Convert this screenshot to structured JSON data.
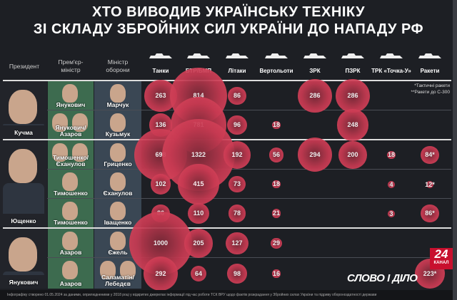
{
  "title": {
    "line1": "ХТО ВИВОДИВ УКРАЇНСЬКУ ТЕХНІКУ",
    "line2": "ЗІ СКЛАДУ ЗБРОЙНИХ СИЛ УКРАЇНИ ДО НАПАДУ РФ"
  },
  "headers": {
    "president": "Президент",
    "pm": "Прем'єр-\nміністр",
    "minister": "Міністр\nоборони"
  },
  "columns": [
    {
      "label": "Танки",
      "icon": "tank-icon"
    },
    {
      "label": "БТР/БМП",
      "icon": "apc-icon"
    },
    {
      "label": "Літаки",
      "icon": "jet-icon"
    },
    {
      "label": "Вертольоти",
      "icon": "helicopter-icon"
    },
    {
      "label": "ЗРК",
      "icon": "sam-icon"
    },
    {
      "label": "ПЗРК",
      "icon": "manpads-icon"
    },
    {
      "label": "ТРК «Точка-У»",
      "icon": "tochka-icon"
    },
    {
      "label": "Ракети",
      "icon": "missile-icon"
    }
  ],
  "notes": [
    "*Тактичні ракети",
    "**Ракети до С-300"
  ],
  "presidents": [
    {
      "name": "Кучма"
    },
    {
      "name": "Ющенко"
    },
    {
      "name": "Янукович"
    }
  ],
  "rows": [
    {
      "president": 0,
      "pm": "Янукович",
      "pm_faces": 1,
      "minister": "Марчук",
      "min_faces": 1,
      "values": [
        "263",
        "814",
        "86",
        "",
        "286",
        "286",
        "",
        ""
      ]
    },
    {
      "president": 0,
      "pm": "Янукович/\nАзаров",
      "pm_faces": 2,
      "minister": "Кузьмук",
      "min_faces": 1,
      "values": [
        "136",
        "781",
        "96",
        "18",
        "",
        "248",
        "",
        ""
      ]
    },
    {
      "president": 1,
      "pm": "Тимошенко/\nЄханулов",
      "pm_faces": 2,
      "minister": "Гриценко",
      "min_faces": 1,
      "values": [
        "698",
        "1322",
        "192",
        "56",
        "294",
        "200",
        "18",
        "84*"
      ]
    },
    {
      "president": 1,
      "pm": "Тимошенко",
      "pm_faces": 1,
      "minister": "Єханулов",
      "min_faces": 1,
      "values": [
        "102",
        "415",
        "73",
        "18",
        "",
        "",
        "4",
        "12*"
      ]
    },
    {
      "president": 1,
      "pm": "Тимошенко",
      "pm_faces": 1,
      "minister": "Іващенко",
      "min_faces": 1,
      "values": [
        "86",
        "110",
        "78",
        "21",
        "",
        "",
        "3",
        "86*"
      ]
    },
    {
      "president": 2,
      "pm": "Азаров",
      "pm_faces": 1,
      "minister": "Єжель",
      "min_faces": 1,
      "values": [
        "1000",
        "205",
        "127",
        "29",
        "",
        "",
        "",
        ""
      ]
    },
    {
      "president": 2,
      "pm": "Азаров",
      "pm_faces": 1,
      "minister": "Саламатін/\nЛебедєв",
      "min_faces": 2,
      "values": [
        "292",
        "64",
        "98",
        "16",
        "",
        "",
        "",
        "223*"
      ]
    }
  ],
  "footer": "Інфографіку створено 01.05.2024 за даними, оприлюдненими у 2018 році у відкритих джерелах інформації під час роботи ТСК ВРУ щодо фактів розкрадання у Збройних силах України та підриву обороноздатності держави",
  "logo": "СЛОВО І ДІЛО",
  "channel": {
    "number": "24",
    "label": "КАНАЛ"
  },
  "colors": {
    "bubble": "#d8404f",
    "background": "#1d1f24",
    "pm_column": "#3d6b4f",
    "minister_column": "#3a4754",
    "channel": "#c8102e"
  }
}
